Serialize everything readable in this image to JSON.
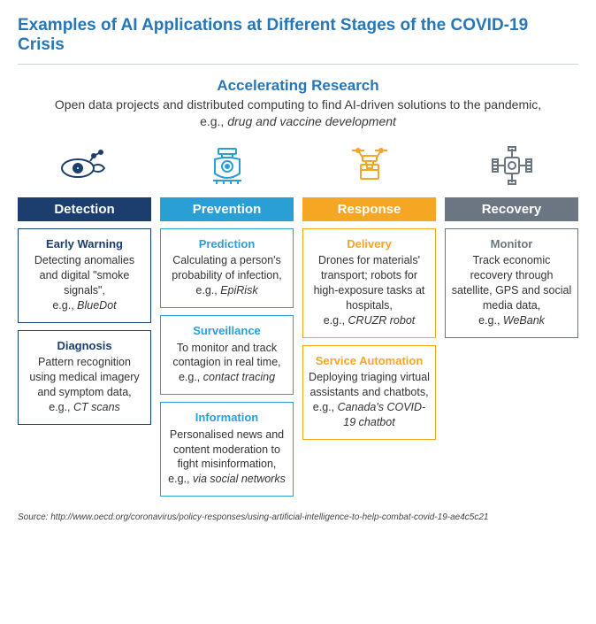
{
  "colors": {
    "title": "#2676b8",
    "detection": "#1b3e6f",
    "prevention": "#2a9fd6",
    "response": "#f5a623",
    "recovery": "#6b7682"
  },
  "mainTitle": "Examples of AI Applications at Different Stages of the COVID-19 Crisis",
  "subtitle": {
    "heading": "Accelerating Research",
    "descPrefix": "Open data projects and distributed computing to find AI-driven solutions to the pandemic, e.g., ",
    "descItalic": "drug and vaccine development"
  },
  "columns": [
    {
      "key": "detection",
      "label": "Detection",
      "cards": [
        {
          "title": "Early Warning",
          "body": "Detecting anomalies and digital \"smoke signals\",",
          "egPrefix": "e.g., ",
          "eg": "BlueDot"
        },
        {
          "title": "Diagnosis",
          "body": "Pattern recognition using medical imagery and symptom data,",
          "egPrefix": "e.g., ",
          "eg": "CT scans"
        }
      ]
    },
    {
      "key": "prevention",
      "label": "Prevention",
      "cards": [
        {
          "title": "Prediction",
          "body": "Calculating a person's probability of infection,",
          "egPrefix": "e.g., ",
          "eg": "EpiRisk"
        },
        {
          "title": "Surveillance",
          "body": "To monitor and track contagion in real time,",
          "egPrefix": "e.g., ",
          "eg": "contact tracing"
        },
        {
          "title": "Information",
          "body": "Personalised news and content moderation to fight misinformation,",
          "egPrefix": "e.g., ",
          "eg": "via social networks"
        }
      ]
    },
    {
      "key": "response",
      "label": "Response",
      "cards": [
        {
          "title": "Delivery",
          "body": "Drones for materials' transport; robots for high-exposure tasks at hospitals,",
          "egPrefix": "e.g., ",
          "eg": "CRUZR robot"
        },
        {
          "title": "Service Automation",
          "body": "Deploying triaging virtual assistants and chatbots,",
          "egPrefix": "e.g., ",
          "eg": "Canada's COVID-19 chatbot"
        }
      ]
    },
    {
      "key": "recovery",
      "label": "Recovery",
      "cards": [
        {
          "title": "Monitor",
          "body": "Track economic recovery through satellite, GPS and social media data,",
          "egPrefix": "e.g., ",
          "eg": "WeBank"
        }
      ]
    }
  ],
  "source": "Source: http://www.oecd.org/coronavirus/policy-responses/using-artificial-intelligence-to-help-combat-covid-19-ae4c5c21"
}
